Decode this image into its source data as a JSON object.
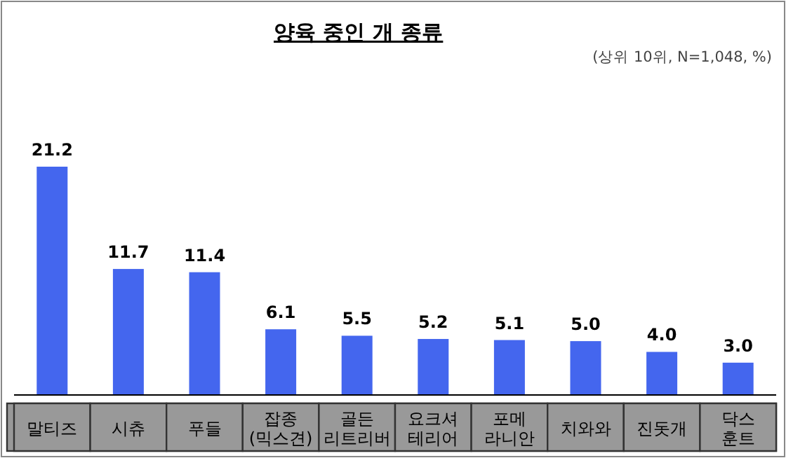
{
  "chart_data": {
    "type": "bar",
    "title": "양육 중인 개 종류",
    "subtitle": "(상위 10위, N=1,048, %)",
    "categories": [
      "말티즈",
      "시츄",
      "푸들",
      "잡종 (믹스견)",
      "골든 리트리버",
      "요크셔 테리어",
      "포메 라니안",
      "치와와",
      "진돗개",
      "닥스 훈트"
    ],
    "values": [
      21.2,
      11.7,
      11.4,
      6.1,
      5.5,
      5.2,
      5.1,
      5.0,
      4.0,
      3.0
    ],
    "value_labels": [
      "21.2",
      "11.7",
      "11.4",
      "6.1",
      "5.5",
      "5.2",
      "5.1",
      "5.0",
      "4.0",
      "3.0"
    ],
    "color": "#4466ee"
  }
}
